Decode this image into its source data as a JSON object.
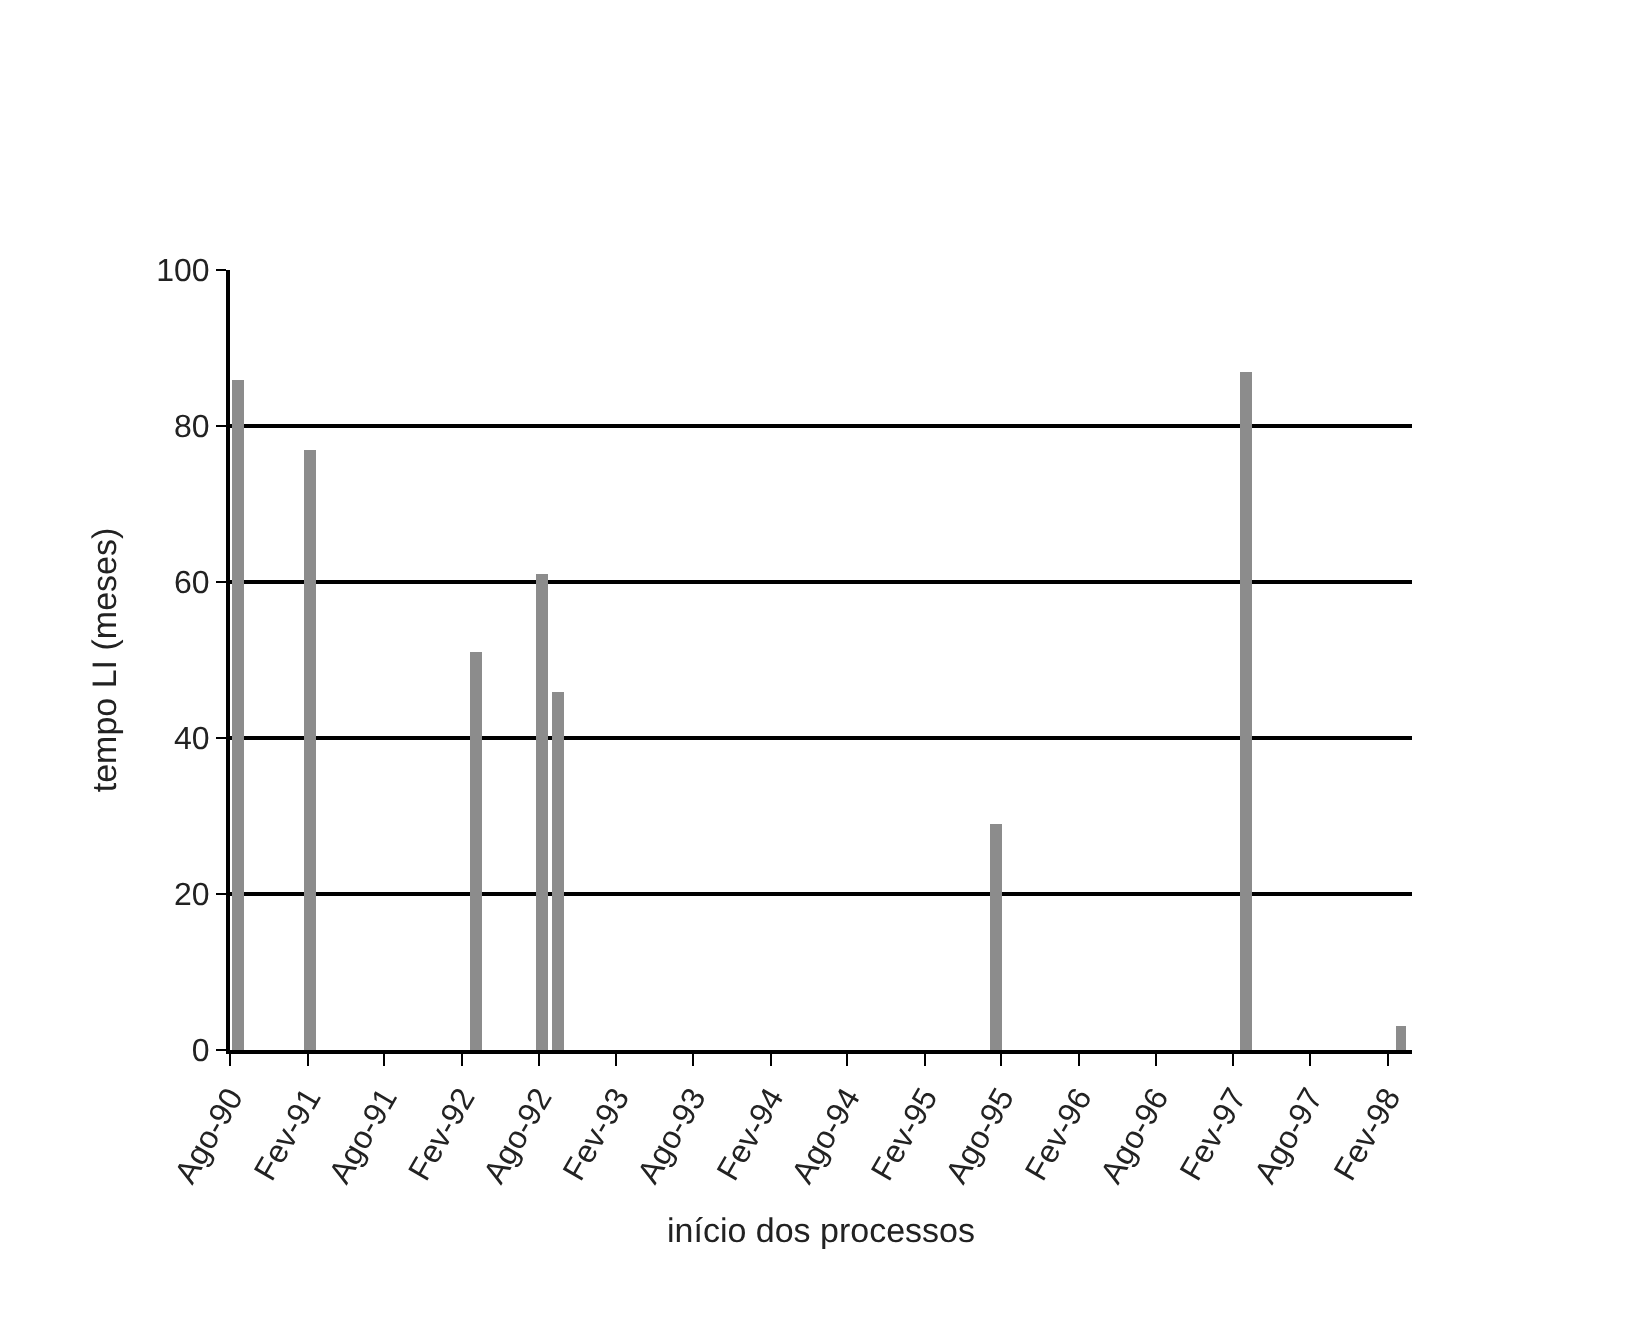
{
  "chart_data": {
    "type": "bar",
    "xlabel": "início dos processos",
    "ylabel": "tempo LI (meses)",
    "x": [
      "1990-08-20",
      "1991-02-05",
      "1992-03-05",
      "1992-08-10",
      "1992-09-15",
      "1995-07-20",
      "1997-03-01",
      "1998-03-05"
    ],
    "values": [
      86,
      77,
      51,
      61,
      46,
      29,
      87,
      3
    ],
    "color": "#8c8c8c",
    "xlim": [
      "1990-08-01",
      "1998-03-31"
    ],
    "xticks": [
      {
        "value": "1990-08-01",
        "label": "Ago-90"
      },
      {
        "value": "1991-02-01",
        "label": "Fev-91"
      },
      {
        "value": "1991-08-01",
        "label": "Ago-91"
      },
      {
        "value": "1992-02-01",
        "label": "Fev-92"
      },
      {
        "value": "1992-08-01",
        "label": "Ago-92"
      },
      {
        "value": "1993-02-01",
        "label": "Fev-93"
      },
      {
        "value": "1993-08-01",
        "label": "Ago-93"
      },
      {
        "value": "1994-02-01",
        "label": "Fev-94"
      },
      {
        "value": "1994-08-01",
        "label": "Ago-94"
      },
      {
        "value": "1995-02-01",
        "label": "Fev-95"
      },
      {
        "value": "1995-08-01",
        "label": "Ago-95"
      },
      {
        "value": "1996-02-01",
        "label": "Fev-96"
      },
      {
        "value": "1996-08-01",
        "label": "Ago-96"
      },
      {
        "value": "1997-02-01",
        "label": "Fev-97"
      },
      {
        "value": "1997-08-01",
        "label": "Ago-97"
      },
      {
        "value": "1998-02-01",
        "label": "Fev-98"
      }
    ],
    "ylim": [
      0,
      100
    ],
    "yticks": [
      0,
      20,
      40,
      60,
      80,
      100
    ],
    "grid": "y"
  }
}
